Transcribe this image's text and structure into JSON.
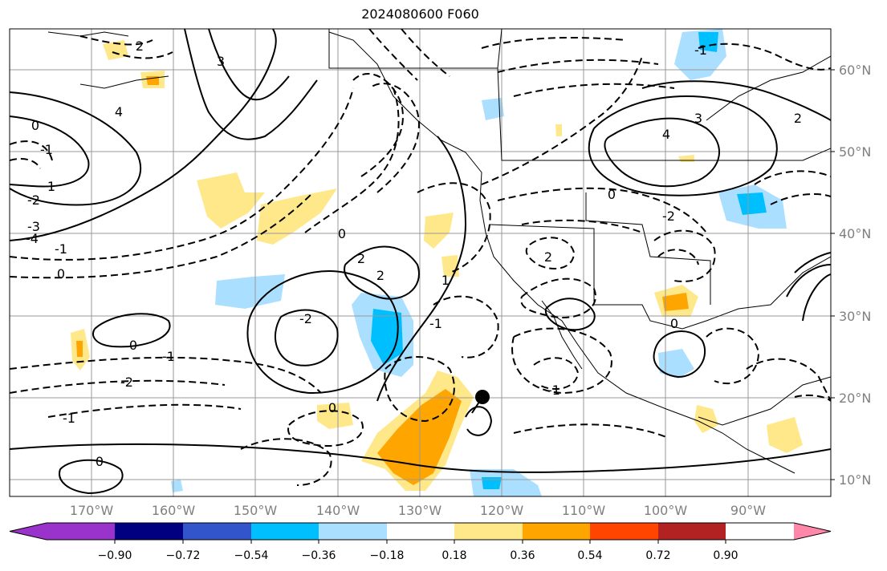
{
  "title": "2024080600 F060",
  "map": {
    "lat_labels": [
      "60°N",
      "50°N",
      "40°N",
      "30°N",
      "20°N",
      "10°N"
    ],
    "lon_labels": [
      "170°W",
      "160°W",
      "150°W",
      "140°W",
      "130°W",
      "120°W",
      "110°W",
      "100°W",
      "90°W"
    ],
    "marker": {
      "lon": -120,
      "lat": 20
    }
  },
  "contour_labels": [
    "2",
    "0",
    "-1",
    "4",
    "3",
    "1",
    "-2",
    "-3",
    "-4",
    "0",
    "-1",
    "2",
    "-2",
    "0",
    "-1",
    "-2",
    "0",
    "2",
    "0",
    "-1",
    "0",
    "1",
    "-1",
    "2",
    "-1",
    "0",
    "4",
    "3",
    "2",
    "-1",
    "-2",
    "0"
  ],
  "colorbar": {
    "colors": [
      "#9933cc",
      "#000080",
      "#3355cc",
      "#00bfff",
      "#aadfff",
      "#ffffff",
      "#ffe88a",
      "#ffa500",
      "#ff4500",
      "#b22222",
      "#ff88aa"
    ],
    "tick_labels": [
      "−0.90",
      "−0.72",
      "−0.54",
      "−0.36",
      "−0.18",
      "0.18",
      "0.36",
      "0.54",
      "0.72",
      "0.90"
    ]
  }
}
